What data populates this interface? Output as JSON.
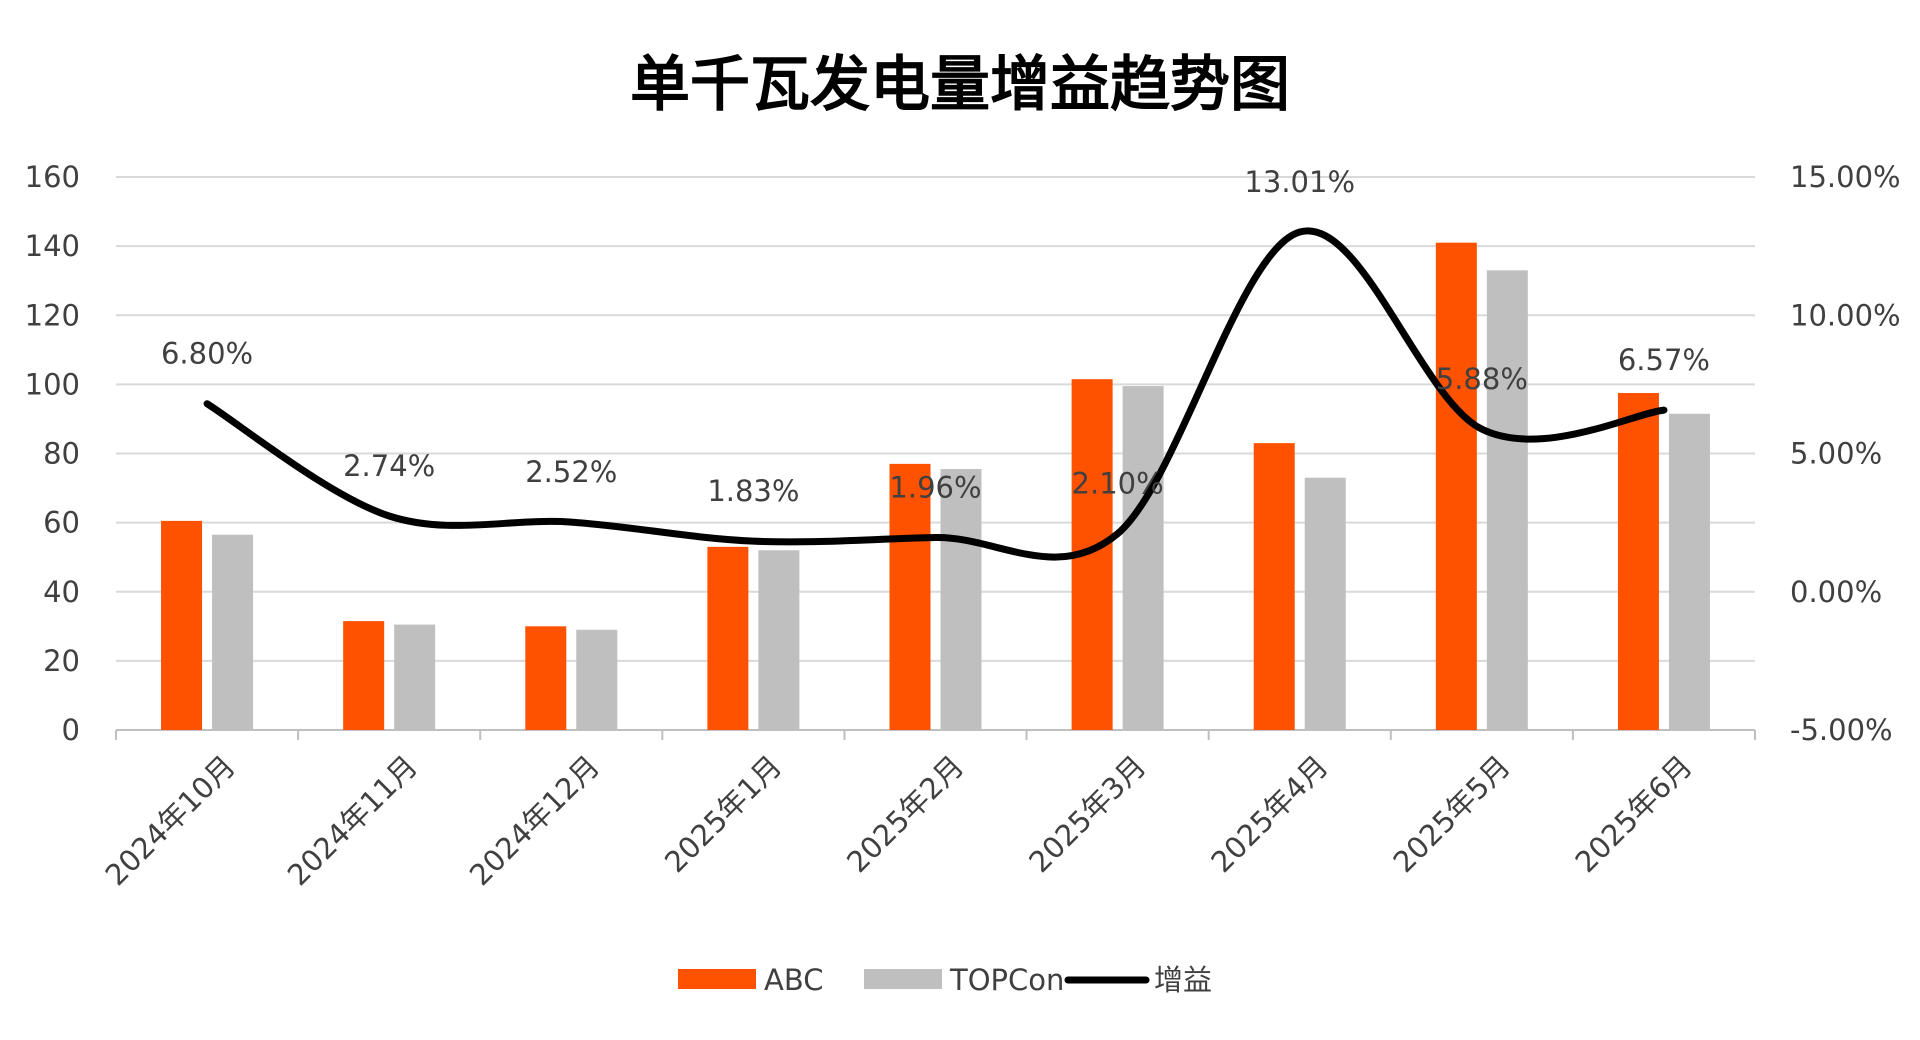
{
  "chart_data": {
    "type": "bar",
    "title": "单千瓦发电量增益趋势图",
    "categories": [
      "2024年10月",
      "2024年11月",
      "2024年12月",
      "2025年1月",
      "2025年2月",
      "2025年3月",
      "2025年4月",
      "2025年5月",
      "2025年6月"
    ],
    "series": [
      {
        "name": "ABC",
        "type": "bar",
        "axis": "left",
        "color": "#FF5200",
        "values": [
          60.5,
          31.5,
          30,
          53,
          77,
          101.5,
          83,
          141,
          97.5
        ]
      },
      {
        "name": "TOPCon",
        "type": "bar",
        "axis": "left",
        "color": "#BFBFBF",
        "values": [
          56.5,
          30.5,
          29,
          52,
          75.5,
          99.5,
          73,
          133,
          91.5
        ]
      },
      {
        "name": "增益",
        "type": "line",
        "axis": "right",
        "color": "#000000",
        "smooth": true,
        "values": [
          6.8,
          2.74,
          2.52,
          1.83,
          1.96,
          2.1,
          13.01,
          5.88,
          6.57
        ],
        "labels": [
          "6.80%",
          "2.74%",
          "2.52%",
          "1.83%",
          "1.96%",
          "2.10%",
          "13.01%",
          "5.88%",
          "6.57%"
        ]
      }
    ],
    "y_left": {
      "min": 0,
      "max": 160,
      "step": 20,
      "ticks": [
        "0",
        "20",
        "40",
        "60",
        "80",
        "100",
        "120",
        "140",
        "160"
      ]
    },
    "y_right": {
      "min": -5,
      "max": 15,
      "step": 5,
      "ticks": [
        "-5.00%",
        "0.00%",
        "5.00%",
        "10.00%",
        "15.00%"
      ]
    },
    "grid": true,
    "legend": {
      "position": "bottom",
      "entries": [
        "ABC",
        "TOPCon",
        "增益"
      ]
    },
    "colors": {
      "gridline": "#D9D9D9",
      "axis": "#BFBFBF",
      "text": "#404040",
      "title": "#000000"
    }
  }
}
